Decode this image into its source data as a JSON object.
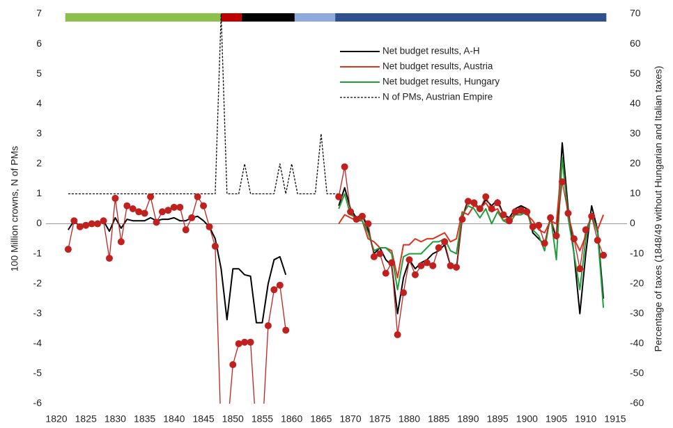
{
  "chart_data": {
    "type": "line",
    "y_label": "100 Million crowns, N of PMs",
    "y2_label": "Percentage of taxes (1848/49 without Hungarian and Italian taxes)",
    "xlim": [
      1820,
      1915
    ],
    "xticks": [
      1820,
      1825,
      1830,
      1835,
      1840,
      1845,
      1850,
      1855,
      1860,
      1865,
      1870,
      1875,
      1880,
      1885,
      1890,
      1895,
      1900,
      1905,
      1910,
      1915
    ],
    "ylim": [
      -6,
      7
    ],
    "yticks": [
      -6,
      -5,
      -4,
      -3,
      -2,
      -1,
      0,
      1,
      2,
      3,
      4,
      5,
      6,
      7
    ],
    "y2lim": [
      -60,
      70
    ],
    "y2ticks": [
      -60,
      -50,
      -40,
      -30,
      -20,
      -10,
      0,
      10,
      20,
      30,
      40,
      50,
      60,
      70
    ],
    "grid": false,
    "legend": "top",
    "periods": [
      {
        "start": 1821.5,
        "end": 1848,
        "color": "#8cc04b"
      },
      {
        "start": 1848,
        "end": 1851.5,
        "color": "#c00000"
      },
      {
        "start": 1851.5,
        "end": 1860.5,
        "color": "#000000"
      },
      {
        "start": 1860.5,
        "end": 1867.4,
        "color": "#8ea9db"
      },
      {
        "start": 1867.4,
        "end": 1913.5,
        "color": "#2f4f8f"
      }
    ],
    "x": [
      1822,
      1823,
      1824,
      1825,
      1826,
      1827,
      1828,
      1829,
      1830,
      1831,
      1832,
      1833,
      1834,
      1835,
      1836,
      1837,
      1838,
      1839,
      1840,
      1841,
      1842,
      1843,
      1844,
      1845,
      1846,
      1847,
      1848,
      1849,
      1850,
      1851,
      1852,
      1853,
      1854,
      1855,
      1856,
      1857,
      1858,
      1859,
      1860,
      1861,
      1862,
      1863,
      1864,
      1865,
      1866,
      1867,
      1868,
      1869,
      1870,
      1871,
      1872,
      1873,
      1874,
      1875,
      1876,
      1877,
      1878,
      1879,
      1880,
      1881,
      1882,
      1883,
      1884,
      1885,
      1886,
      1887,
      1888,
      1889,
      1890,
      1891,
      1892,
      1893,
      1894,
      1895,
      1896,
      1897,
      1898,
      1899,
      1900,
      1901,
      1902,
      1903,
      1904,
      1905,
      1906,
      1907,
      1908,
      1909,
      1910,
      1911,
      1912,
      1913
    ],
    "series": [
      {
        "name": "Net budget results, A-H",
        "color": "#000000",
        "values": [
          -0.2,
          0.1,
          -0.1,
          0,
          0,
          0,
          0.1,
          -0.25,
          0.2,
          -0.15,
          0.15,
          0.1,
          0.1,
          0.1,
          0.2,
          0.1,
          0.15,
          0.15,
          0.2,
          0.1,
          0.1,
          0.2,
          0.25,
          0.1,
          -0.1,
          -0.5,
          -1.5,
          -3.2,
          -1.5,
          -1.5,
          -1.7,
          -1.75,
          -3.3,
          -3.3,
          -2.0,
          -1.2,
          -1.1,
          -1.7,
          null,
          null,
          null,
          null,
          null,
          null,
          null,
          null,
          0.6,
          1.2,
          0.5,
          0.2,
          0.3,
          -0.2,
          -1.0,
          -0.8,
          -1.2,
          -1.4,
          -3.0,
          -1.8,
          -1.2,
          -1.5,
          -1.3,
          -1.2,
          -1.0,
          -0.9,
          -0.7,
          -1.4,
          -1.5,
          0.2,
          0.8,
          0.7,
          0.5,
          0.8,
          0.6,
          0.8,
          0.3,
          0.2,
          0.5,
          0.6,
          0.5,
          -0.3,
          -0.5,
          -0.7,
          0.2,
          -0.5,
          2.7,
          0.5,
          -1.0,
          -3.0,
          -1.0,
          0.6,
          -0.2,
          -2.5
        ]
      },
      {
        "name": "Net budget results, Austria",
        "color": "#e0301e",
        "values": [
          null,
          null,
          null,
          null,
          null,
          null,
          null,
          null,
          null,
          null,
          null,
          null,
          null,
          null,
          null,
          null,
          null,
          null,
          null,
          null,
          null,
          null,
          null,
          null,
          null,
          null,
          null,
          null,
          null,
          null,
          null,
          null,
          null,
          null,
          null,
          null,
          null,
          null,
          null,
          null,
          null,
          null,
          null,
          null,
          null,
          null,
          0,
          0.3,
          0.2,
          0.1,
          0.1,
          -0.5,
          -0.6,
          -0.8,
          -0.8,
          -0.9,
          -1.8,
          -0.7,
          -0.7,
          -0.5,
          -0.6,
          -0.5,
          -0.5,
          -0.4,
          -0.3,
          -0.6,
          -0.5,
          0.4,
          0.3,
          0.6,
          0.5,
          0.7,
          0.4,
          0.5,
          0.1,
          0.2,
          0.3,
          0.4,
          0.3,
          0.1,
          -0.2,
          -0.3,
          0.1,
          0,
          2.2,
          0.3,
          -0.5,
          -0.9,
          -0.4,
          0.3,
          -0.2,
          0.3
        ]
      },
      {
        "name": "Net budget results, Hungary",
        "color": "#1e9e3a",
        "values": [
          null,
          null,
          null,
          null,
          null,
          null,
          null,
          null,
          null,
          null,
          null,
          null,
          null,
          null,
          null,
          null,
          null,
          null,
          null,
          null,
          null,
          null,
          null,
          null,
          null,
          null,
          null,
          null,
          null,
          null,
          null,
          null,
          null,
          null,
          null,
          null,
          null,
          null,
          null,
          null,
          null,
          null,
          null,
          null,
          null,
          null,
          0.5,
          1.0,
          0.3,
          0.2,
          0.1,
          -0.3,
          -0.9,
          -0.8,
          -0.8,
          -1.0,
          -2.2,
          -1.1,
          -1.0,
          -1.0,
          -1.0,
          -0.8,
          -0.6,
          -0.6,
          -0.5,
          -0.9,
          -1.0,
          0.3,
          0.6,
          0.5,
          0.2,
          0.5,
          0.0,
          0.4,
          0.1,
          0.0,
          0.3,
          0.3,
          0.4,
          -0.2,
          -0.4,
          -0.9,
          0.3,
          -1.2,
          2.2,
          0.2,
          -1.0,
          -2.2,
          -0.5,
          0.3,
          -0.3,
          -2.8
        ]
      },
      {
        "name": "N of PMs, Austrian Empire",
        "color": "#000000",
        "dash": true,
        "values": [
          1,
          1,
          1,
          1,
          1,
          1,
          1,
          1,
          1,
          1,
          1,
          1,
          1,
          1,
          1,
          1,
          1,
          1,
          1,
          1,
          1,
          1,
          1,
          1,
          1,
          1,
          7,
          1,
          1,
          1,
          2,
          1,
          1,
          1,
          1,
          1,
          2,
          1,
          2,
          1,
          1,
          1,
          1,
          3,
          1,
          1,
          1,
          null,
          null,
          null,
          null,
          null,
          null,
          null,
          null,
          null,
          null,
          null,
          null,
          null,
          null,
          null,
          null,
          null,
          null,
          null,
          null,
          null,
          null,
          null,
          null,
          null,
          null,
          null,
          null,
          null,
          null,
          null,
          null,
          null,
          null,
          null,
          null,
          null,
          null,
          null,
          null,
          null,
          null,
          null,
          null,
          null
        ]
      },
      {
        "color": "#c0201e",
        "axis": "y2",
        "markers": true,
        "values": [
          -8.5,
          1,
          -1,
          -0.5,
          0,
          0,
          1,
          -11.5,
          8.5,
          -6,
          6,
          5,
          4,
          3.5,
          9,
          0.5,
          4,
          4.5,
          5.5,
          5.5,
          -2,
          2,
          9,
          6,
          -1,
          -7.5,
          -70,
          -70,
          -47,
          -40,
          -39.5,
          -39.5,
          -70,
          -70,
          -34,
          -22,
          -20.5,
          -35.5,
          null,
          null,
          null,
          null,
          null,
          null,
          null,
          null,
          9,
          19,
          4,
          1.5,
          2.5,
          0,
          -11,
          -10,
          -16.5,
          -13,
          -37,
          -23,
          -12,
          -17,
          -14,
          -13,
          -14,
          -8,
          -6,
          -14,
          -14.5,
          1.5,
          7.5,
          7,
          5,
          9,
          5,
          7,
          3,
          1,
          4,
          4.5,
          4,
          -1,
          -0.5,
          -6.5,
          2,
          -4,
          14,
          3.5,
          -5,
          -15,
          -2,
          2.5,
          -5.5,
          -10.5
        ]
      }
    ]
  }
}
